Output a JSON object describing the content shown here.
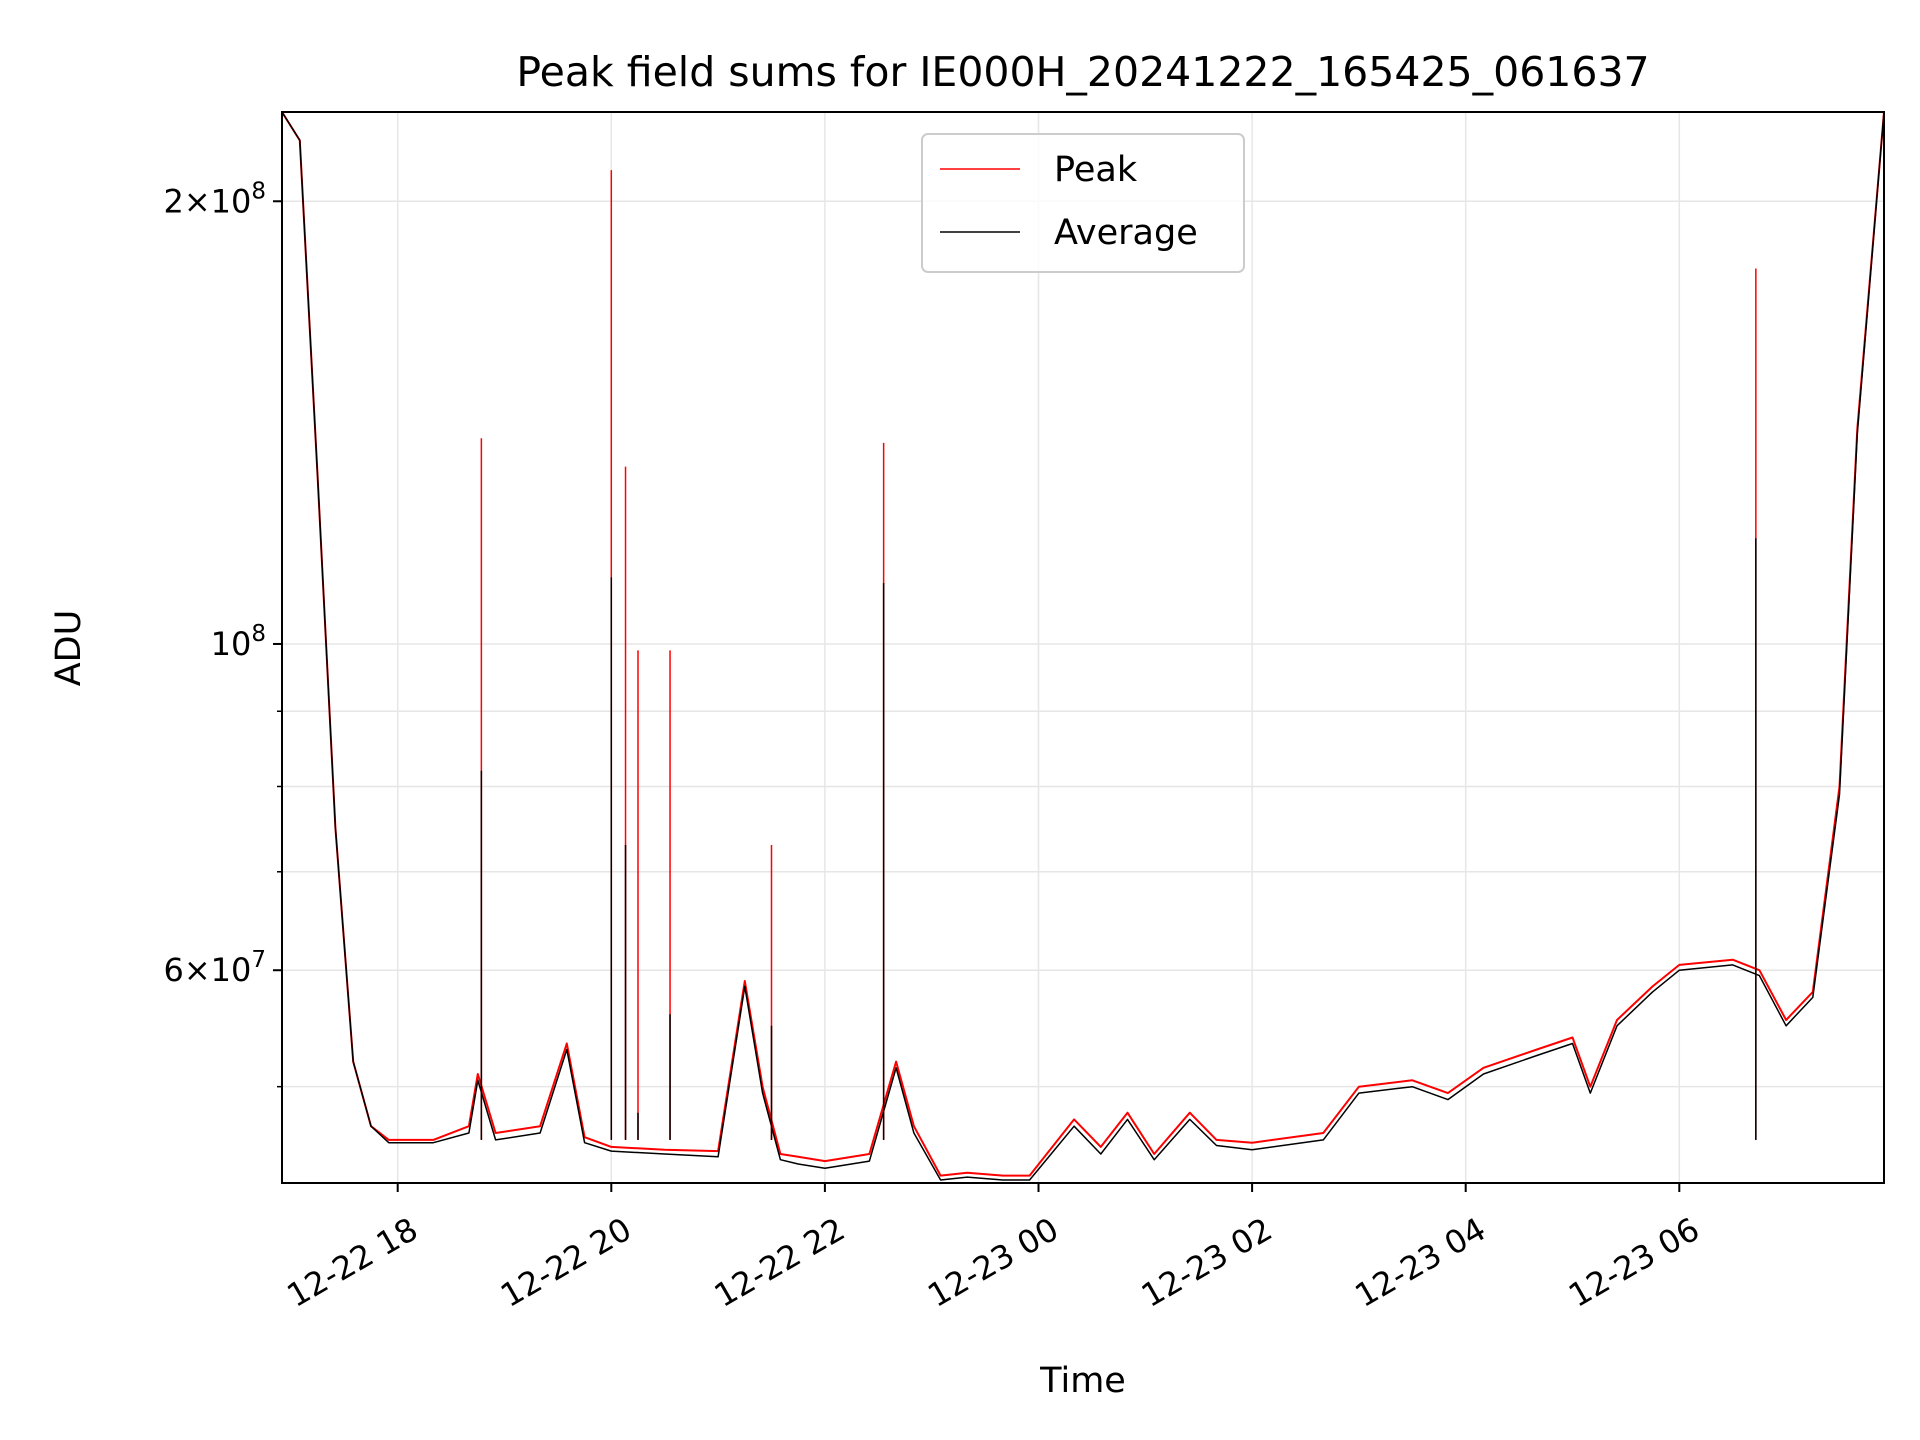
{
  "chart_data": {
    "type": "line",
    "title": "Peak field sums for IE000H_20241222_165425_061637",
    "xlabel": "Time",
    "ylabel": "ADU",
    "y_scale": "log",
    "grid": true,
    "legend_position": "top-center",
    "x_range": [
      "2024-12-22T16:55",
      "2024-12-23T07:55"
    ],
    "ylim": [
      43000000,
      230000000
    ],
    "x_ticks": [
      "12-22 18",
      "12-22 20",
      "12-22 22",
      "12-23 00",
      "12-23 02",
      "12-23 04",
      "12-23 06"
    ],
    "x_tick_times": [
      "2024-12-22T18:00",
      "2024-12-22T20:00",
      "2024-12-22T22:00",
      "2024-12-23T00:00",
      "2024-12-23T02:00",
      "2024-12-23T04:00",
      "2024-12-23T06:00"
    ],
    "y_ticks_major": [
      {
        "base": "2",
        "exp": "8",
        "value": 200000000
      },
      {
        "base": "",
        "exp": "8",
        "value": 100000000
      },
      {
        "base": "6",
        "exp": "7",
        "value": 60000000
      }
    ],
    "y_ticks_minor": [
      50000000,
      70000000,
      80000000,
      90000000
    ],
    "series": [
      {
        "name": "Peak",
        "color": "#ff0000",
        "x": [
          "2024-12-22T16:55",
          "2024-12-22T17:05",
          "2024-12-22T17:15",
          "2024-12-22T17:25",
          "2024-12-22T17:35",
          "2024-12-22T17:45",
          "2024-12-22T17:55",
          "2024-12-22T18:05",
          "2024-12-22T18:20",
          "2024-12-22T18:40",
          "2024-12-22T18:45",
          "2024-12-22T18:55",
          "2024-12-22T19:20",
          "2024-12-22T19:35",
          "2024-12-22T19:45",
          "2024-12-22T20:00",
          "2024-12-22T20:30",
          "2024-12-22T21:00",
          "2024-12-22T21:15",
          "2024-12-22T21:25",
          "2024-12-22T21:35",
          "2024-12-22T21:45",
          "2024-12-22T22:00",
          "2024-12-22T22:25",
          "2024-12-22T22:40",
          "2024-12-22T22:50",
          "2024-12-22T23:05",
          "2024-12-22T23:20",
          "2024-12-22T23:40",
          "2024-12-22T23:55",
          "2024-12-23T00:20",
          "2024-12-23T00:35",
          "2024-12-23T00:50",
          "2024-12-23T01:05",
          "2024-12-23T01:25",
          "2024-12-23T01:40",
          "2024-12-23T02:00",
          "2024-12-23T02:40",
          "2024-12-23T03:00",
          "2024-12-23T03:30",
          "2024-12-23T03:50",
          "2024-12-23T04:10",
          "2024-12-23T04:40",
          "2024-12-23T05:00",
          "2024-12-23T05:10",
          "2024-12-23T05:25",
          "2024-12-23T05:45",
          "2024-12-23T06:00",
          "2024-12-23T06:30",
          "2024-12-23T06:45",
          "2024-12-23T07:00",
          "2024-12-23T07:15",
          "2024-12-23T07:30",
          "2024-12-23T07:40",
          "2024-12-23T07:55"
        ],
        "values": [
          230000000,
          220000000,
          130000000,
          75000000,
          52000000,
          47000000,
          46000000,
          46000000,
          46000000,
          47000000,
          51000000,
          46500000,
          47000000,
          53500000,
          46200000,
          45500000,
          45300000,
          45200000,
          59000000,
          50000000,
          45000000,
          44800000,
          44500000,
          45000000,
          52000000,
          47000000,
          43500000,
          43700000,
          43500000,
          43500000,
          47500000,
          45500000,
          48000000,
          45000000,
          48000000,
          46000000,
          45800000,
          46500000,
          50000000,
          50500000,
          49500000,
          51500000,
          53000000,
          54000000,
          50000000,
          55500000,
          58500000,
          60500000,
          61000000,
          60000000,
          55500000,
          58000000,
          80000000,
          140000000,
          230000000
        ]
      },
      {
        "name": "Average",
        "color": "#000000",
        "x": [
          "2024-12-22T16:55",
          "2024-12-22T17:05",
          "2024-12-22T17:15",
          "2024-12-22T17:25",
          "2024-12-22T17:35",
          "2024-12-22T17:45",
          "2024-12-22T17:55",
          "2024-12-22T18:05",
          "2024-12-22T18:20",
          "2024-12-22T18:40",
          "2024-12-22T18:45",
          "2024-12-22T18:55",
          "2024-12-22T19:20",
          "2024-12-22T19:35",
          "2024-12-22T19:45",
          "2024-12-22T20:00",
          "2024-12-22T20:30",
          "2024-12-22T21:00",
          "2024-12-22T21:15",
          "2024-12-22T21:25",
          "2024-12-22T21:35",
          "2024-12-22T21:45",
          "2024-12-22T22:00",
          "2024-12-22T22:25",
          "2024-12-22T22:40",
          "2024-12-22T22:50",
          "2024-12-22T23:05",
          "2024-12-22T23:20",
          "2024-12-22T23:40",
          "2024-12-22T23:55",
          "2024-12-23T00:20",
          "2024-12-23T00:35",
          "2024-12-23T00:50",
          "2024-12-23T01:05",
          "2024-12-23T01:25",
          "2024-12-23T01:40",
          "2024-12-23T02:00",
          "2024-12-23T02:40",
          "2024-12-23T03:00",
          "2024-12-23T03:30",
          "2024-12-23T03:50",
          "2024-12-23T04:10",
          "2024-12-23T04:40",
          "2024-12-23T05:00",
          "2024-12-23T05:10",
          "2024-12-23T05:25",
          "2024-12-23T05:45",
          "2024-12-23T06:00",
          "2024-12-23T06:30",
          "2024-12-23T06:45",
          "2024-12-23T07:00",
          "2024-12-23T07:15",
          "2024-12-23T07:30",
          "2024-12-23T07:40",
          "2024-12-23T07:55"
        ],
        "values": [
          230000000,
          220000000,
          130000000,
          75000000,
          52000000,
          47000000,
          45800000,
          45800000,
          45800000,
          46500000,
          50500000,
          46000000,
          46500000,
          53000000,
          45800000,
          45200000,
          45000000,
          44800000,
          58500000,
          49500000,
          44600000,
          44300000,
          44000000,
          44500000,
          51500000,
          46500000,
          43200000,
          43400000,
          43200000,
          43200000,
          47000000,
          45000000,
          47500000,
          44600000,
          47500000,
          45600000,
          45300000,
          46000000,
          49500000,
          50000000,
          49000000,
          51000000,
          52500000,
          53500000,
          49500000,
          55000000,
          58000000,
          60000000,
          60500000,
          59500000,
          55000000,
          57500000,
          79000000,
          139000000,
          230000000
        ]
      }
    ],
    "spikes": [
      {
        "time": "2024-12-22T18:47",
        "peak": 138000000,
        "average": 82000000
      },
      {
        "time": "2024-12-22T20:00",
        "peak": 210000000,
        "average": 111000000
      },
      {
        "time": "2024-12-22T20:08",
        "peak": 132000000,
        "average": 73000000
      },
      {
        "time": "2024-12-22T20:15",
        "peak": 99000000,
        "average": 48000000
      },
      {
        "time": "2024-12-22T20:33",
        "peak": 99000000,
        "average": 56000000
      },
      {
        "time": "2024-12-22T21:30",
        "peak": 73000000,
        "average": 55000000
      },
      {
        "time": "2024-12-22T22:33",
        "peak": 137000000,
        "average": 110000000
      },
      {
        "time": "2024-12-23T06:43",
        "peak": 180000000,
        "average": 118000000
      }
    ]
  }
}
